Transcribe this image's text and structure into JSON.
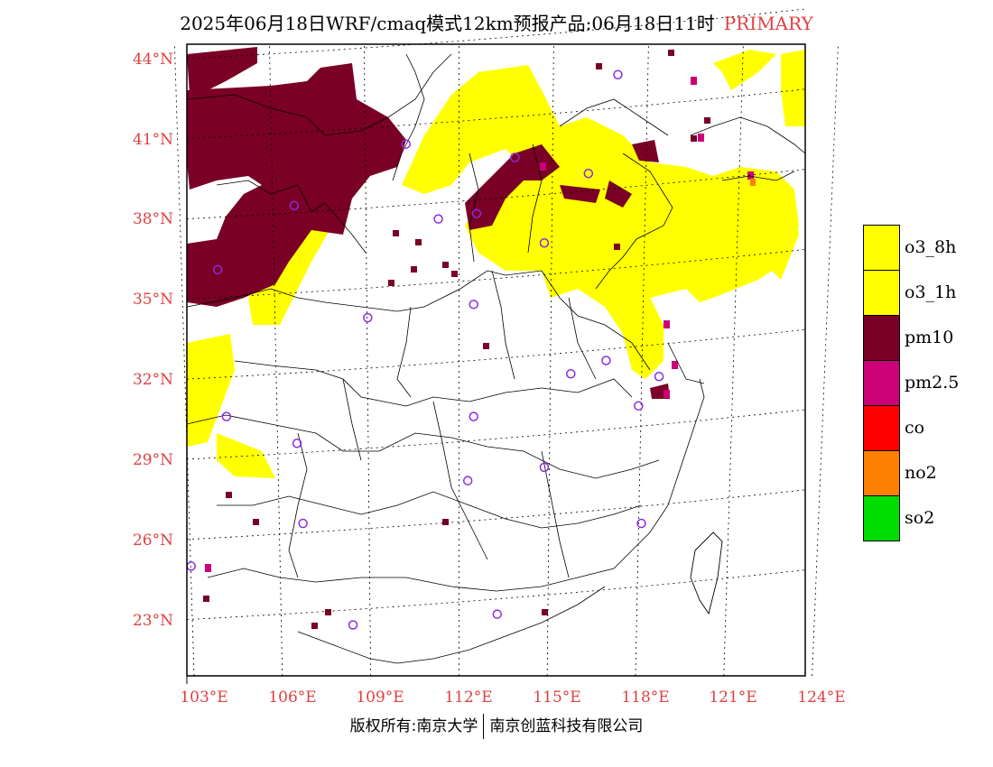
{
  "header": {
    "title": "2025年06月18日WRF/cmaq模式12km预报产品:06月18日11时",
    "tag": "PRIMARY"
  },
  "axes": {
    "lat_labels": [
      "44°N",
      "41°N",
      "38°N",
      "35°N",
      "32°N",
      "29°N",
      "26°N",
      "23°N"
    ],
    "lon_labels": [
      "103°E",
      "106°E",
      "109°E",
      "112°E",
      "115°E",
      "118°E",
      "121°E",
      "124°E"
    ]
  },
  "legend": {
    "items": [
      {
        "label": "o3_8h",
        "color": "#ffff00"
      },
      {
        "label": "o3_1h",
        "color": "#ffff00"
      },
      {
        "label": "pm10",
        "color": "#7a0026"
      },
      {
        "label": "pm2.5",
        "color": "#cc0077"
      },
      {
        "label": "co",
        "color": "#ff0000"
      },
      {
        "label": "no2",
        "color": "#ff8000"
      },
      {
        "label": "so2",
        "color": "#00dd00"
      }
    ]
  },
  "colors": {
    "label_red": "#e04040",
    "station_marker": "#8a2be2",
    "o3": "#ffff00",
    "pm10": "#7a0026",
    "pm25": "#cc0077",
    "no2": "#ff8000"
  },
  "map": {
    "stations": [
      {
        "lon": 110.2,
        "lat": 40.8
      },
      {
        "lon": 106.4,
        "lat": 38.5
      },
      {
        "lon": 111.3,
        "lat": 38.0
      },
      {
        "lon": 112.6,
        "lat": 38.2
      },
      {
        "lon": 113.9,
        "lat": 40.3
      },
      {
        "lon": 116.4,
        "lat": 39.7
      },
      {
        "lon": 117.4,
        "lat": 43.4
      },
      {
        "lon": 103.8,
        "lat": 36.1
      },
      {
        "lon": 114.9,
        "lat": 37.1
      },
      {
        "lon": 108.9,
        "lat": 34.3
      },
      {
        "lon": 112.5,
        "lat": 34.8
      },
      {
        "lon": 117.0,
        "lat": 32.7
      },
      {
        "lon": 115.8,
        "lat": 32.2
      },
      {
        "lon": 118.8,
        "lat": 32.1
      },
      {
        "lon": 118.1,
        "lat": 31.0
      },
      {
        "lon": 104.1,
        "lat": 30.6
      },
      {
        "lon": 106.5,
        "lat": 29.6
      },
      {
        "lon": 112.5,
        "lat": 30.6
      },
      {
        "lon": 114.9,
        "lat": 28.7
      },
      {
        "lon": 112.3,
        "lat": 28.2
      },
      {
        "lon": 106.7,
        "lat": 26.6
      },
      {
        "lon": 118.2,
        "lat": 26.6
      },
      {
        "lon": 102.9,
        "lat": 25.0
      },
      {
        "lon": 108.4,
        "lat": 22.8
      },
      {
        "lon": 113.3,
        "lat": 23.2
      }
    ]
  },
  "footer": {
    "left": "版权所有:南京大学",
    "right": "南京创蓝科技有限公司"
  }
}
